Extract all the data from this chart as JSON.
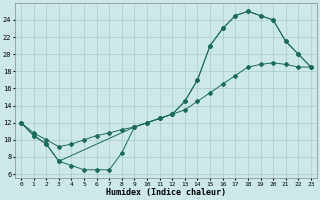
{
  "xlabel": "Humidex (Indice chaleur)",
  "bg_color": "#cde8e8",
  "grid_color": "#aacccc",
  "line_color": "#1a6b5a",
  "xlim": [
    -0.5,
    23.5
  ],
  "ylim": [
    5.5,
    26
  ],
  "xticks": [
    0,
    1,
    2,
    3,
    4,
    5,
    6,
    7,
    8,
    9,
    10,
    11,
    12,
    13,
    14,
    15,
    16,
    17,
    18,
    19,
    20,
    21,
    22,
    23
  ],
  "yticks": [
    6,
    8,
    10,
    12,
    14,
    16,
    18,
    20,
    22,
    24
  ],
  "line_top_x": [
    0,
    1,
    2,
    3,
    9,
    10,
    11,
    12,
    13,
    14,
    15,
    16,
    17,
    18,
    19,
    20,
    21,
    22,
    23
  ],
  "line_top_y": [
    12,
    10.5,
    9.5,
    7.5,
    11.5,
    12.0,
    12.5,
    13.0,
    14.5,
    17.0,
    21.0,
    23.0,
    24.5,
    25.0,
    24.5,
    24.0,
    21.5,
    20.0,
    18.5
  ],
  "line_diag_x": [
    0,
    1,
    2,
    3,
    4,
    5,
    6,
    7,
    8,
    9,
    10,
    11,
    12,
    13,
    14,
    15,
    16,
    17,
    18,
    19,
    20,
    21,
    22,
    23
  ],
  "line_diag_y": [
    12,
    10.8,
    10.0,
    9.2,
    9.5,
    10.0,
    10.5,
    10.8,
    11.2,
    11.5,
    12.0,
    12.5,
    13.0,
    13.5,
    14.5,
    15.5,
    16.5,
    17.5,
    18.5,
    18.8,
    19.0,
    18.8,
    18.5,
    18.5
  ],
  "line_bot_x": [
    0,
    1,
    2,
    3,
    4,
    5,
    6,
    7,
    8,
    9,
    10,
    11,
    12,
    13,
    14,
    15,
    16,
    17,
    18,
    19,
    20,
    21,
    22,
    23
  ],
  "line_bot_y": [
    12,
    10.5,
    9.5,
    7.5,
    7.0,
    6.5,
    6.5,
    6.5,
    8.5,
    11.5,
    12.0,
    12.5,
    13.0,
    14.5,
    17.0,
    21.0,
    23.0,
    24.5,
    25.0,
    24.5,
    24.0,
    21.5,
    20.0,
    18.5
  ]
}
